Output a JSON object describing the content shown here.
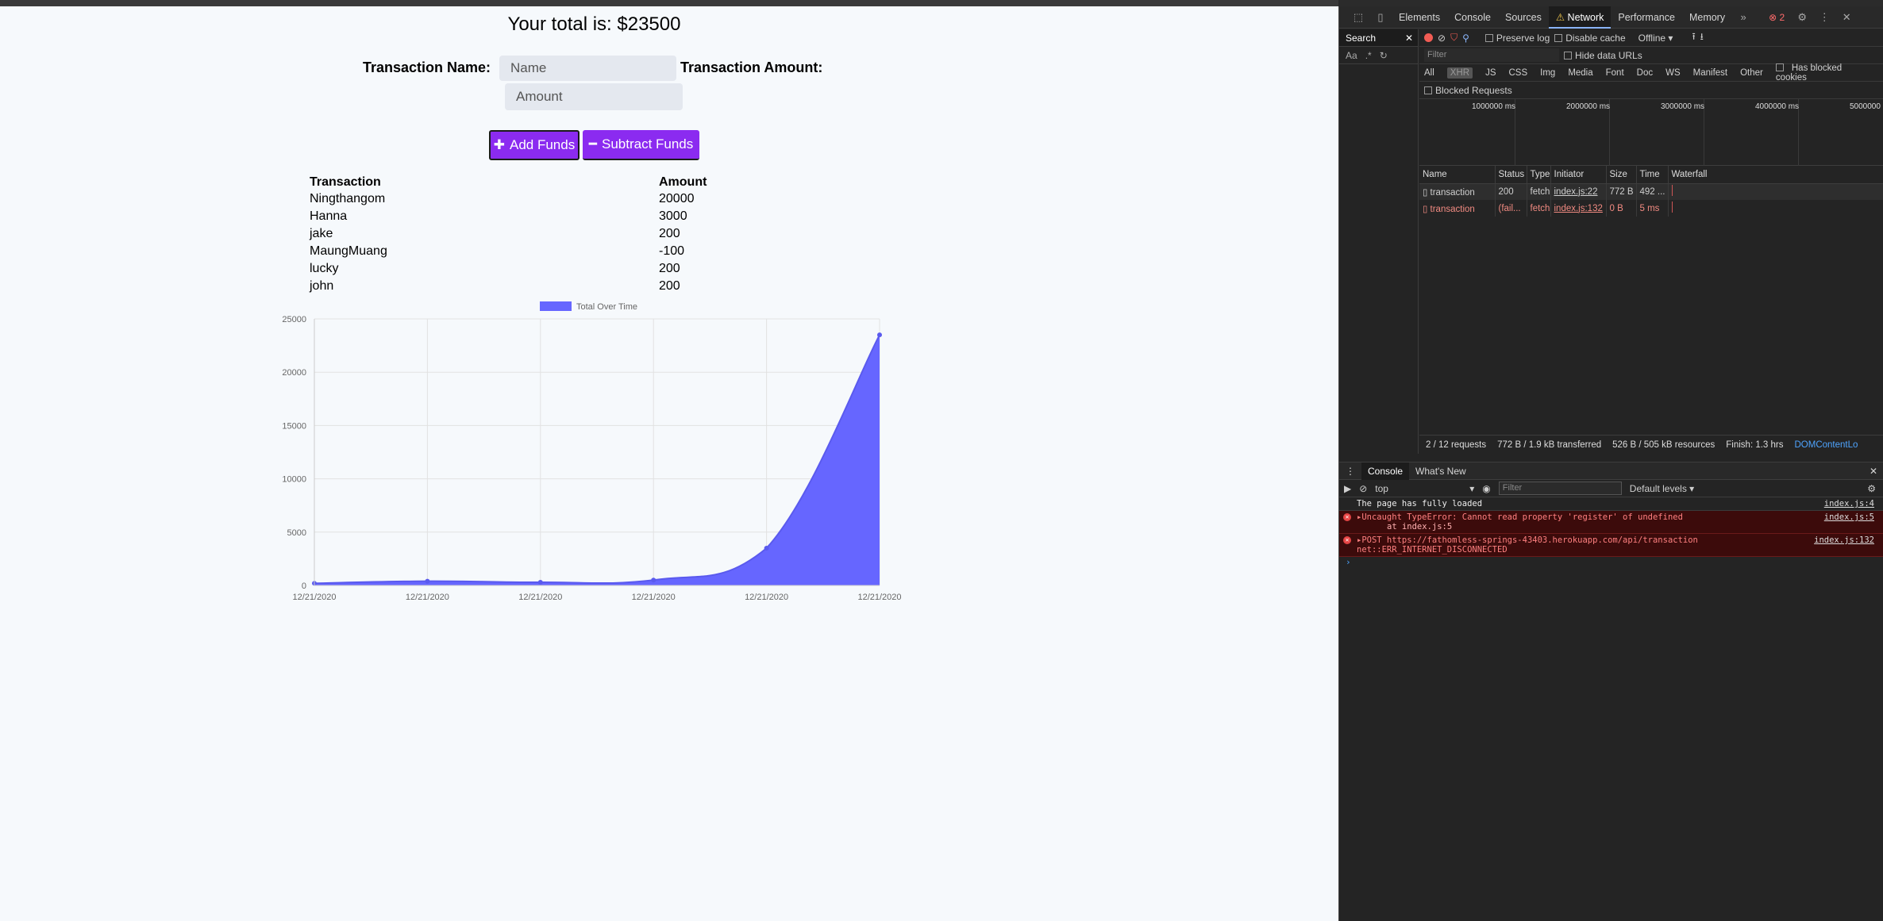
{
  "app": {
    "total_text": "Your total is: $23500",
    "name_label": "Transaction Name:",
    "name_placeholder": "Name",
    "amount_label": "Transaction Amount:",
    "amount_placeholder": "Amount",
    "add_label": "Add Funds",
    "subtract_label": "Subtract Funds",
    "accent": "#8b2bf0",
    "table": {
      "headers": [
        "Transaction",
        "Amount"
      ],
      "rows": [
        [
          "Ningthangom",
          "20000"
        ],
        [
          "Hanna",
          "3000"
        ],
        [
          "jake",
          "200"
        ],
        [
          "MaungMuang",
          "-100"
        ],
        [
          "lucky",
          "200"
        ],
        [
          "john",
          "200"
        ]
      ]
    }
  },
  "chart_data": {
    "type": "area",
    "title": "",
    "xlabel": "",
    "ylabel": "",
    "x": [
      "12/21/2020",
      "12/21/2020",
      "12/21/2020",
      "12/21/2020",
      "12/21/2020",
      "12/21/2020"
    ],
    "series": [
      {
        "name": "Total Over Time",
        "values": [
          200,
          400,
          300,
          500,
          3500,
          23500
        ],
        "color": "#6666ff"
      }
    ],
    "ylim": [
      0,
      25000
    ],
    "yticks": [
      0,
      5000,
      10000,
      15000,
      20000,
      25000
    ],
    "grid": true,
    "legend": "top"
  },
  "devtools": {
    "tabs": [
      "Elements",
      "Console",
      "Sources",
      "Network",
      "Performance",
      "Memory"
    ],
    "active_tab": "Network",
    "error_count": "2",
    "search_label": "Search",
    "preserve_log": "Preserve log",
    "disable_cache": "Disable cache",
    "throttle": "Offline",
    "filter_placeholder": "Filter",
    "hide_data_urls": "Hide data URLs",
    "type_filters": [
      "All",
      "XHR",
      "JS",
      "CSS",
      "Img",
      "Media",
      "Font",
      "Doc",
      "WS",
      "Manifest",
      "Other"
    ],
    "has_blocked_cookies": "Has blocked cookies",
    "blocked_requests": "Blocked Requests",
    "overview_ticks": [
      "1000000 ms",
      "2000000 ms",
      "3000000 ms",
      "4000000 ms",
      "5000000"
    ],
    "columns": [
      "Name",
      "Status",
      "Type",
      "Initiator",
      "Size",
      "Time",
      "Waterfall"
    ],
    "requests": [
      {
        "name": "transaction",
        "status": "200",
        "type": "fetch",
        "initiator": "index.js:22",
        "size": "772 B",
        "time": "492 ..."
      },
      {
        "name": "transaction",
        "status": "(fail...",
        "type": "fetch",
        "initiator": "index.js:132",
        "size": "0 B",
        "time": "5 ms"
      }
    ],
    "summary": {
      "requests": "2 / 12 requests",
      "transferred": "772 B / 1.9 kB transferred",
      "resources": "526 B / 505 kB resources",
      "finish": "Finish: 1.3 hrs",
      "dcl": "DOMContentLo"
    },
    "drawer_tabs": [
      "Console",
      "What's New"
    ],
    "context": "top",
    "console_filter": "Filter",
    "levels": "Default levels",
    "messages": [
      {
        "kind": "log",
        "text": "The page has fully loaded",
        "src": "index.js:4"
      },
      {
        "kind": "error",
        "text": "Uncaught TypeError: Cannot read property 'register' of undefined",
        "sub": "at index.js:5",
        "src": "index.js:5"
      },
      {
        "kind": "error",
        "text": "POST https://fathomless-springs-43403.herokuapp.com/api/transaction",
        "sub": "net::ERR_INTERNET_DISCONNECTED",
        "src": "index.js:132"
      }
    ]
  }
}
